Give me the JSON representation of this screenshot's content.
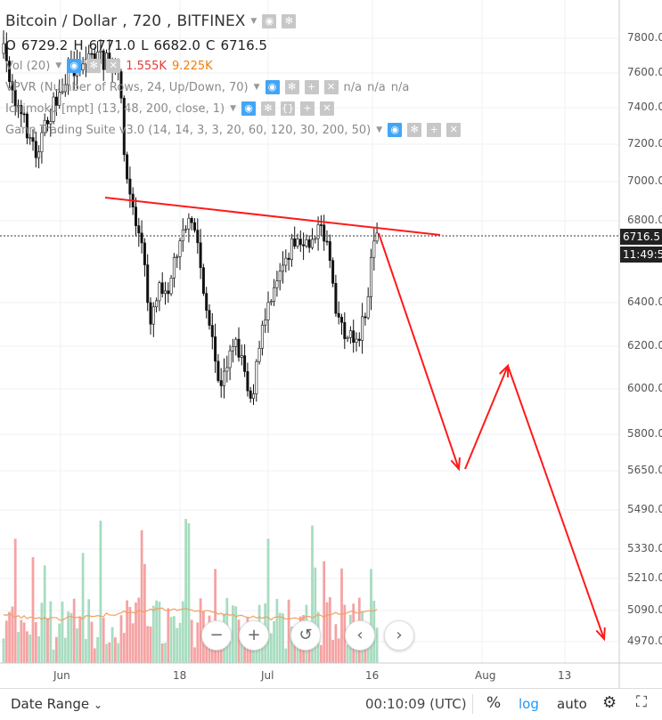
{
  "title": {
    "symbol": "Bitcoin / Dollar",
    "interval": "720",
    "exchange": "BITFINEX"
  },
  "ohlc": {
    "open_label": "O",
    "open": "6729.2",
    "high_label": "H",
    "high": "6771.0",
    "low_label": "L",
    "low": "6682.0",
    "close_label": "C",
    "close": "6716.5"
  },
  "indicators": [
    {
      "name": "Vol (20)",
      "values": [
        "1.555K",
        "9.225K"
      ]
    },
    {
      "name": "VPVR (Number of Rows, 24, Up/Down, 70)",
      "values": [
        "n/a",
        "n/a",
        "n/a"
      ]
    },
    {
      "name": "Ichimoku [mpt] (13, 48, 200, close, 1)",
      "values": []
    },
    {
      "name": "Gann Trading Suite v3.0 (14, 14, 3, 3, 20, 60, 120, 30, 200, 50)",
      "values": []
    }
  ],
  "price_axis": {
    "ticks": [
      "7800.0",
      "7600.0",
      "7400.0",
      "7200.0",
      "7000.0",
      "6800.0",
      "6400.0",
      "6200.0",
      "6000.0",
      "5800.0",
      "5650.0",
      "5490.0",
      "5330.0",
      "5210.0",
      "5090.0",
      "4970.0"
    ],
    "current_price": "6716.5",
    "countdown": "11:49:5",
    "scale": "log"
  },
  "time_axis": {
    "ticks": [
      "Jun",
      "18",
      "Jul",
      "16",
      "Aug",
      "13"
    ]
  },
  "colors": {
    "up": "#222222",
    "down": "#222222",
    "trendline": "#ff1a1a",
    "vol_up": "#a8dcc0",
    "vol_down": "#f5a3a3",
    "ma": "#f0a060",
    "accent": "#42a5f5"
  },
  "chart_data": {
    "type": "candlestick",
    "annotations": [
      {
        "kind": "trendline",
        "points": [
          [
            "2018-06-08",
            6910
          ],
          [
            "2018-07-19",
            6720
          ]
        ]
      },
      {
        "kind": "projection-arrows",
        "points": [
          [
            "2018-07-16",
            6770
          ],
          [
            "2018-07-28",
            5680
          ],
          [
            "2018-08-03",
            6110
          ],
          [
            "2018-08-16",
            4960
          ]
        ]
      }
    ]
  },
  "zoom_controls": {
    "zoom_out": "−",
    "zoom_in": "+",
    "reset": "↺",
    "left": "‹",
    "right": "›"
  },
  "bottom_bar": {
    "date_range": "Date Range",
    "time": "00:10:09 (UTC)",
    "percent": "%",
    "log": "log",
    "auto": "auto"
  }
}
